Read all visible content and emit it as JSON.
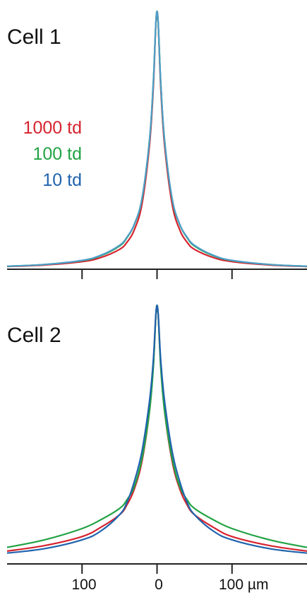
{
  "colors": {
    "c1000": "#d6232f",
    "c100": "#22a344",
    "c10": "#1f63ad",
    "c10_cell1": "#4f9ec9"
  },
  "legend": [
    {
      "label": "1000 td",
      "color": "#d6232f"
    },
    {
      "label": "100 td",
      "color": "#22a344"
    },
    {
      "label": "10 td",
      "color": "#1f63ad"
    }
  ],
  "chart_data": [
    {
      "type": "line",
      "title": "Cell 1",
      "xlabel": "",
      "ylabel": "",
      "xlim": [
        -200,
        200
      ],
      "xticks": [
        -100,
        0,
        100
      ],
      "tick_labels": [],
      "ylim": [
        0,
        1
      ],
      "series": [
        {
          "name": "1000 td",
          "color": "#d6232f",
          "x": [
            -200,
            -150,
            -100,
            -75,
            -50,
            -40,
            -30,
            -20,
            -10,
            -5,
            0,
            5,
            10,
            20,
            30,
            40,
            50,
            75,
            100,
            150,
            200
          ],
          "y": [
            0.005,
            0.011,
            0.024,
            0.04,
            0.072,
            0.1,
            0.15,
            0.25,
            0.48,
            0.7,
            1.0,
            0.7,
            0.48,
            0.25,
            0.15,
            0.1,
            0.072,
            0.04,
            0.024,
            0.011,
            0.005
          ]
        },
        {
          "name": "100 td",
          "color": "#22a344",
          "x": [
            -200,
            -150,
            -100,
            -75,
            -50,
            -40,
            -30,
            -20,
            -10,
            -5,
            0,
            5,
            10,
            20,
            30,
            40,
            50,
            75,
            100,
            150,
            200
          ],
          "y": [
            0.006,
            0.013,
            0.028,
            0.047,
            0.085,
            0.118,
            0.17,
            0.27,
            0.5,
            0.72,
            1.0,
            0.72,
            0.5,
            0.27,
            0.17,
            0.118,
            0.085,
            0.047,
            0.028,
            0.013,
            0.006
          ]
        },
        {
          "name": "10 td",
          "color": "#4f9ec9",
          "x": [
            -200,
            -150,
            -100,
            -75,
            -50,
            -40,
            -30,
            -20,
            -10,
            -5,
            0,
            5,
            10,
            20,
            30,
            40,
            50,
            75,
            100,
            150,
            200
          ],
          "y": [
            0.006,
            0.013,
            0.029,
            0.049,
            0.088,
            0.12,
            0.172,
            0.272,
            0.5,
            0.72,
            1.0,
            0.72,
            0.5,
            0.272,
            0.172,
            0.12,
            0.088,
            0.049,
            0.029,
            0.013,
            0.006
          ]
        }
      ]
    },
    {
      "type": "line",
      "title": "Cell 2",
      "xlabel": "",
      "ylabel": "",
      "xlim": [
        -200,
        200
      ],
      "xticks": [
        -100,
        0,
        100
      ],
      "tick_labels": [
        "100",
        "0",
        "100 µm"
      ],
      "ylim": [
        0,
        1
      ],
      "series": [
        {
          "name": "1000 td",
          "color": "#d6232f",
          "x": [
            -200,
            -150,
            -100,
            -75,
            -50,
            -40,
            -30,
            -20,
            -10,
            -5,
            0,
            5,
            10,
            20,
            30,
            40,
            50,
            75,
            100,
            150,
            200
          ],
          "y": [
            0.02,
            0.042,
            0.078,
            0.115,
            0.165,
            0.205,
            0.27,
            0.38,
            0.58,
            0.76,
            1.0,
            0.76,
            0.58,
            0.38,
            0.27,
            0.205,
            0.165,
            0.115,
            0.078,
            0.042,
            0.02
          ]
        },
        {
          "name": "100 td",
          "color": "#22a344",
          "x": [
            -200,
            -150,
            -100,
            -75,
            -50,
            -40,
            -30,
            -20,
            -10,
            -5,
            0,
            5,
            10,
            20,
            30,
            40,
            50,
            75,
            100,
            150,
            200
          ],
          "y": [
            0.035,
            0.065,
            0.11,
            0.145,
            0.19,
            0.225,
            0.28,
            0.39,
            0.58,
            0.75,
            1.0,
            0.75,
            0.58,
            0.39,
            0.28,
            0.225,
            0.19,
            0.145,
            0.11,
            0.065,
            0.035
          ]
        },
        {
          "name": "10 td",
          "color": "#1f63ad",
          "x": [
            -200,
            -150,
            -100,
            -75,
            -50,
            -40,
            -30,
            -20,
            -10,
            -5,
            0,
            5,
            10,
            20,
            30,
            40,
            50,
            75,
            100,
            150,
            200
          ],
          "y": [
            0.012,
            0.03,
            0.065,
            0.1,
            0.165,
            0.215,
            0.3,
            0.42,
            0.62,
            0.78,
            1.0,
            0.78,
            0.62,
            0.42,
            0.3,
            0.215,
            0.165,
            0.1,
            0.065,
            0.03,
            0.012
          ]
        }
      ]
    }
  ]
}
